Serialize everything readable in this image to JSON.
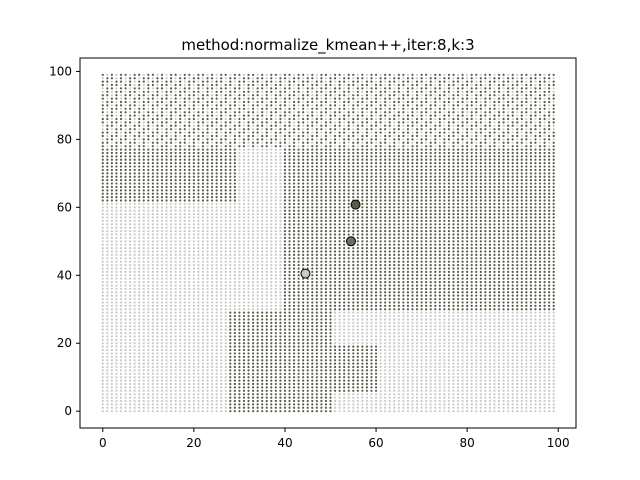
{
  "chart_data": {
    "type": "scatter",
    "title": "method:normalize_kmean++,iter:8,k:3",
    "xlabel": "",
    "ylabel": "",
    "xlim": [
      -5.0,
      103.9
    ],
    "ylim": [
      -4.95,
      103.95
    ],
    "xticks": [
      0,
      20,
      40,
      60,
      80,
      100
    ],
    "yticks": [
      0,
      20,
      40,
      60,
      80,
      100
    ],
    "grid": false,
    "point_grid": {
      "x_range": [
        0,
        99
      ],
      "y_range": [
        0,
        99
      ],
      "step": 1
    },
    "cluster_colors": [
      "#c9c9c9",
      "#5a5a48",
      "#8a8a7a"
    ],
    "regions_note_free": true,
    "centroids": [
      {
        "x": 44.5,
        "y": 40.5,
        "color": "#c9c9c9"
      },
      {
        "x": 54.5,
        "y": 50.0,
        "color": "#6e6e5e"
      },
      {
        "x": 55.5,
        "y": 60.8,
        "color": "#5a5a48"
      }
    ]
  }
}
